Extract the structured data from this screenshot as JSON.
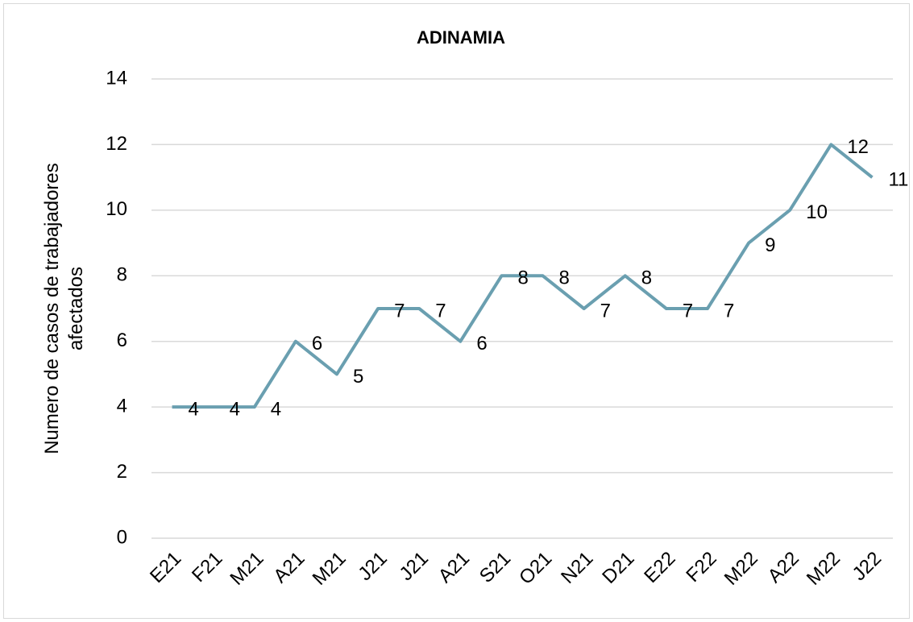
{
  "chart_data": {
    "type": "line",
    "title": "ADINAMIA",
    "ylabel": "Numero de casos de trabajadores afectados",
    "categories": [
      "E21",
      "F21",
      "M21",
      "A21",
      "M21",
      "J21",
      "J21",
      "A21",
      "S21",
      "O21",
      "N21",
      "D21",
      "E22",
      "F22",
      "M22",
      "A22",
      "M22",
      "J22"
    ],
    "series": [
      {
        "name": "ADINAMIA",
        "color": "#6a9fb0",
        "values": [
          4,
          4,
          4,
          6,
          5,
          7,
          7,
          6,
          8,
          8,
          7,
          8,
          7,
          7,
          9,
          10,
          12,
          11
        ]
      }
    ],
    "ylim": [
      0,
      14
    ],
    "yticks": [
      0,
      2,
      4,
      6,
      8,
      10,
      12,
      14
    ],
    "grid": true,
    "data_labels": true
  }
}
